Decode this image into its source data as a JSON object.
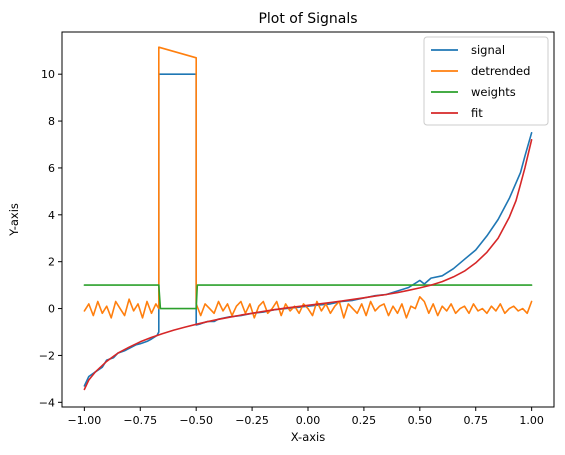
{
  "chart_data": {
    "type": "line",
    "title": "Plot of Signals",
    "xlabel": "X-axis",
    "ylabel": "Y-axis",
    "xlim": [
      -1.1,
      1.1
    ],
    "ylim": [
      -4.2,
      11.8
    ],
    "grid": false,
    "legend_position": "top-right",
    "x_ticks": [
      -1.0,
      -0.75,
      -0.5,
      -0.25,
      0.0,
      0.25,
      0.5,
      0.75,
      1.0
    ],
    "x_tick_labels": [
      "−1.00",
      "−0.75",
      "−0.50",
      "−0.25",
      "0.00",
      "0.25",
      "0.50",
      "0.75",
      "1.00"
    ],
    "y_ticks": [
      -4,
      -2,
      0,
      2,
      4,
      6,
      8,
      10
    ],
    "y_tick_labels": [
      "−4",
      "−2",
      "0",
      "2",
      "4",
      "6",
      "8",
      "10"
    ],
    "series": [
      {
        "name": "signal",
        "color": "#1f77b4",
        "x": [
          -1.0,
          -0.98,
          -0.95,
          -0.92,
          -0.9,
          -0.87,
          -0.85,
          -0.82,
          -0.8,
          -0.77,
          -0.75,
          -0.72,
          -0.7,
          -0.675,
          -0.667,
          -0.667,
          -0.5,
          -0.5,
          -0.48,
          -0.45,
          -0.42,
          -0.4,
          -0.35,
          -0.3,
          -0.25,
          -0.2,
          -0.15,
          -0.1,
          -0.05,
          0.0,
          0.05,
          0.1,
          0.15,
          0.2,
          0.25,
          0.3,
          0.35,
          0.4,
          0.45,
          0.5,
          0.52,
          0.55,
          0.6,
          0.65,
          0.7,
          0.75,
          0.8,
          0.85,
          0.9,
          0.95,
          0.97,
          1.0
        ],
        "y": [
          -3.3,
          -2.9,
          -2.7,
          -2.5,
          -2.2,
          -2.1,
          -1.9,
          -1.8,
          -1.7,
          -1.55,
          -1.5,
          -1.4,
          -1.3,
          -1.15,
          -1.0,
          10.0,
          10.0,
          -0.7,
          -0.65,
          -0.55,
          -0.55,
          -0.45,
          -0.35,
          -0.3,
          -0.2,
          -0.15,
          -0.05,
          0.0,
          0.05,
          0.1,
          0.15,
          0.2,
          0.3,
          0.35,
          0.45,
          0.55,
          0.6,
          0.75,
          0.9,
          1.2,
          1.05,
          1.3,
          1.4,
          1.7,
          2.1,
          2.5,
          3.1,
          3.8,
          4.7,
          5.8,
          6.5,
          7.5
        ]
      },
      {
        "name": "detrended",
        "color": "#ff7f0e",
        "x": [
          -1.0,
          -0.98,
          -0.96,
          -0.94,
          -0.92,
          -0.9,
          -0.88,
          -0.86,
          -0.84,
          -0.82,
          -0.8,
          -0.78,
          -0.76,
          -0.74,
          -0.72,
          -0.7,
          -0.68,
          -0.667,
          -0.667,
          -0.5,
          -0.5,
          -0.48,
          -0.46,
          -0.44,
          -0.42,
          -0.4,
          -0.38,
          -0.36,
          -0.34,
          -0.32,
          -0.3,
          -0.28,
          -0.26,
          -0.24,
          -0.22,
          -0.2,
          -0.18,
          -0.16,
          -0.14,
          -0.12,
          -0.1,
          -0.08,
          -0.06,
          -0.04,
          -0.02,
          0.0,
          0.02,
          0.04,
          0.06,
          0.08,
          0.1,
          0.12,
          0.14,
          0.16,
          0.18,
          0.2,
          0.22,
          0.24,
          0.26,
          0.28,
          0.3,
          0.32,
          0.34,
          0.36,
          0.38,
          0.4,
          0.42,
          0.44,
          0.46,
          0.48,
          0.5,
          0.52,
          0.54,
          0.56,
          0.58,
          0.6,
          0.62,
          0.64,
          0.66,
          0.68,
          0.7,
          0.72,
          0.74,
          0.76,
          0.78,
          0.8,
          0.82,
          0.84,
          0.86,
          0.88,
          0.9,
          0.92,
          0.94,
          0.96,
          0.98,
          1.0
        ],
        "y": [
          -0.1,
          0.2,
          -0.3,
          0.3,
          -0.2,
          0.1,
          -0.4,
          0.3,
          0.0,
          -0.3,
          0.4,
          -0.1,
          0.2,
          -0.4,
          0.3,
          -0.2,
          0.2,
          0.0,
          11.15,
          10.7,
          0.2,
          -0.3,
          0.2,
          0.0,
          -0.2,
          0.3,
          -0.1,
          0.2,
          -0.3,
          0.1,
          0.3,
          -0.2,
          0.2,
          -0.4,
          0.1,
          0.3,
          -0.2,
          0.0,
          0.3,
          -0.3,
          0.2,
          -0.1,
          0.1,
          -0.2,
          0.2,
          0.0,
          -0.3,
          0.3,
          -0.1,
          0.2,
          -0.2,
          0.1,
          0.3,
          -0.4,
          0.2,
          0.0,
          -0.2,
          0.2,
          -0.3,
          0.3,
          -0.1,
          0.1,
          0.2,
          -0.3,
          0.1,
          -0.2,
          0.2,
          -0.4,
          0.1,
          0.0,
          0.5,
          0.3,
          -0.2,
          0.2,
          -0.3,
          0.1,
          -0.1,
          0.2,
          -0.2,
          0.0,
          0.1,
          -0.2,
          0.2,
          -0.1,
          0.0,
          -0.2,
          0.1,
          -0.1,
          0.2,
          -0.2,
          0.0,
          0.1,
          -0.1,
          0.0,
          -0.2,
          0.3
        ]
      },
      {
        "name": "weights",
        "color": "#2ca02c",
        "x": [
          -1.0,
          -0.667,
          -0.66,
          -0.5,
          -0.495,
          1.0
        ],
        "y": [
          1.0,
          1.0,
          0.0,
          0.0,
          1.0,
          1.0
        ]
      },
      {
        "name": "fit",
        "color": "#d62728",
        "x": [
          -1.0,
          -0.98,
          -0.95,
          -0.9,
          -0.85,
          -0.8,
          -0.75,
          -0.7,
          -0.65,
          -0.6,
          -0.55,
          -0.5,
          -0.45,
          -0.4,
          -0.35,
          -0.3,
          -0.25,
          -0.2,
          -0.15,
          -0.1,
          -0.05,
          0.0,
          0.05,
          0.1,
          0.15,
          0.2,
          0.25,
          0.3,
          0.35,
          0.4,
          0.45,
          0.5,
          0.55,
          0.6,
          0.65,
          0.7,
          0.75,
          0.8,
          0.85,
          0.9,
          0.93,
          0.95,
          0.97,
          1.0
        ],
        "y": [
          -3.45,
          -3.05,
          -2.7,
          -2.25,
          -1.9,
          -1.65,
          -1.42,
          -1.23,
          -1.07,
          -0.92,
          -0.79,
          -0.67,
          -0.56,
          -0.46,
          -0.37,
          -0.28,
          -0.2,
          -0.12,
          -0.05,
          0.02,
          0.08,
          0.14,
          0.2,
          0.26,
          0.32,
          0.39,
          0.46,
          0.53,
          0.6,
          0.68,
          0.78,
          0.88,
          1.0,
          1.15,
          1.35,
          1.6,
          1.95,
          2.4,
          3.0,
          3.9,
          4.6,
          5.3,
          6.0,
          7.2
        ]
      }
    ]
  }
}
